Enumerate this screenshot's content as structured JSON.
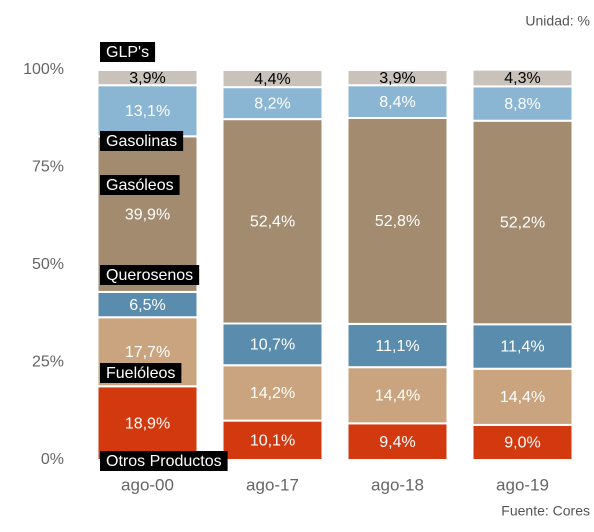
{
  "chart_data": {
    "type": "stacked_bar",
    "unit_note": "Unidad: %",
    "source": "Fuente: Cores",
    "categories": [
      "ago-00",
      "ago-17",
      "ago-18",
      "ago-19"
    ],
    "series": [
      {
        "name": "Otros Productos",
        "color": "#d2390f",
        "label_color": "#ffffff",
        "values": [
          18.9,
          10.1,
          9.4,
          9.0
        ],
        "value_labels": [
          "18,9%",
          "10,1%",
          "9,4%",
          "9,0%"
        ]
      },
      {
        "name": "Fuelóleos",
        "color": "#c9a47e",
        "label_color": "#ffffff",
        "values": [
          17.7,
          14.2,
          14.4,
          14.4
        ],
        "value_labels": [
          "17,7%",
          "14,2%",
          "14,4%",
          "14,4%"
        ]
      },
      {
        "name": "Querosenos",
        "color": "#5a8cae",
        "label_color": "#ffffff",
        "values": [
          6.5,
          10.7,
          11.1,
          11.4
        ],
        "value_labels": [
          "6,5%",
          "10,7%",
          "11,1%",
          "11,4%"
        ]
      },
      {
        "name": "Gasóleos",
        "color": "#a38b70",
        "label_color": "#ffffff",
        "values": [
          39.9,
          52.4,
          52.8,
          52.2
        ],
        "value_labels": [
          "39,9%",
          "52,4%",
          "52,8%",
          "52,2%"
        ]
      },
      {
        "name": "Gasolinas",
        "color": "#8ab5d3",
        "label_color": "#ffffff",
        "values": [
          13.1,
          8.2,
          8.4,
          8.8
        ],
        "value_labels": [
          "13,1%",
          "8,2%",
          "8,4%",
          "8,8%"
        ]
      },
      {
        "name": "GLP's",
        "color": "#c9c2ba",
        "label_color": "#000000",
        "values": [
          3.9,
          4.4,
          3.9,
          4.3
        ],
        "value_labels": [
          "3,9%",
          "4,4%",
          "3,9%",
          "4,3%"
        ]
      }
    ],
    "ylim": [
      0,
      100
    ],
    "yticks": [
      {
        "value": 0,
        "label": "0%"
      },
      {
        "value": 25,
        "label": "25%"
      },
      {
        "value": 50,
        "label": "50%"
      },
      {
        "value": 75,
        "label": "75%"
      },
      {
        "value": 100,
        "label": "100%"
      }
    ]
  }
}
